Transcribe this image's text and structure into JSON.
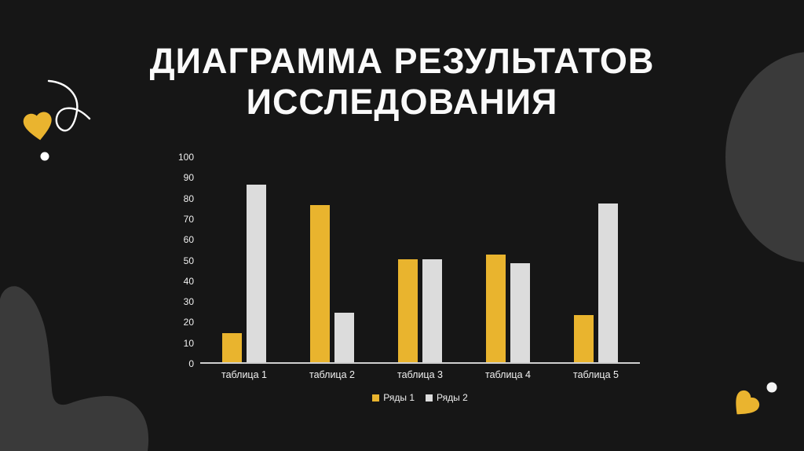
{
  "slide": {
    "colors": {
      "background": "#161616",
      "blob_gray": "#3a3a3a",
      "accent_yellow": "#eab42f",
      "bar_white": "#dcdcdc",
      "text": "#fafafa",
      "axis_line": "#cfcfcf"
    }
  },
  "chart_data": {
    "type": "bar",
    "title": "ДИАГРАММА РЕЗУЛЬТАТОВ ИССЛЕДОВАНИЯ",
    "xlabel": "",
    "ylabel": "",
    "categories": [
      "таблица 1",
      "таблица 2",
      "таблица 3",
      "таблица 4",
      "таблица 5"
    ],
    "series": [
      {
        "name": "Ряды 1",
        "color": "#e9b42e",
        "values": [
          14,
          76,
          50,
          52,
          23
        ]
      },
      {
        "name": "Ряды 2",
        "color": "#dcdcdc",
        "values": [
          86,
          24,
          50,
          48,
          77
        ]
      }
    ],
    "y_ticks": [
      0,
      10,
      20,
      30,
      40,
      50,
      60,
      70,
      80,
      90,
      100
    ],
    "ylim": [
      0,
      100
    ],
    "grid": false,
    "legend_position": "bottom"
  }
}
